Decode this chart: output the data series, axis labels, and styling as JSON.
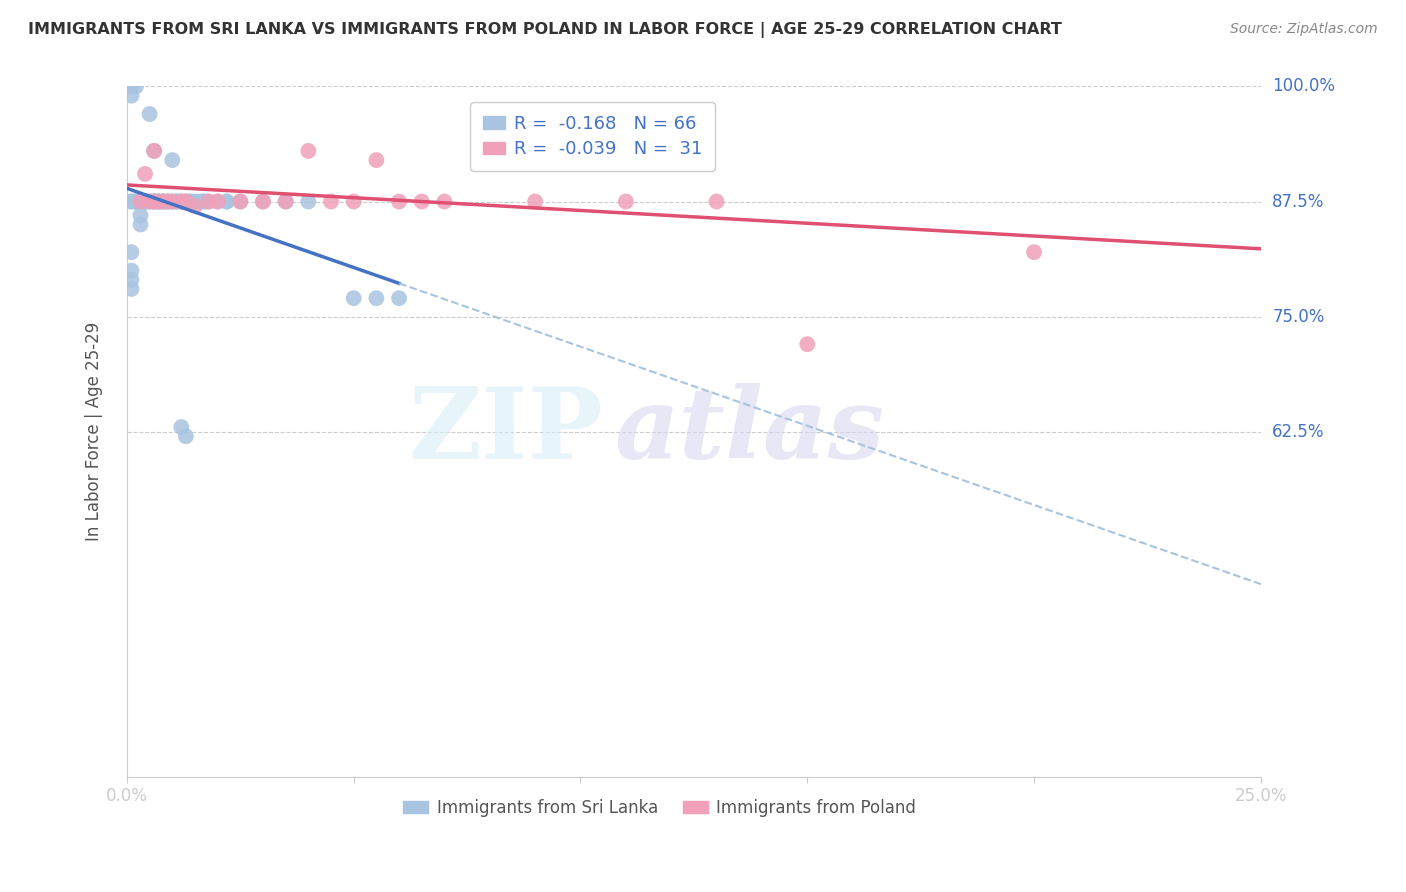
{
  "title": "IMMIGRANTS FROM SRI LANKA VS IMMIGRANTS FROM POLAND IN LABOR FORCE | AGE 25-29 CORRELATION CHART",
  "source_text": "Source: ZipAtlas.com",
  "ylabel_label": "In Labor Force | Age 25-29",
  "legend_label_blue": "Immigrants from Sri Lanka",
  "legend_label_pink": "Immigrants from Poland",
  "legend_R_blue_val": "-0.168",
  "legend_N_blue": "66",
  "legend_R_pink_val": "-0.039",
  "legend_N_pink": "31",
  "xlim": [
    0.0,
    0.25
  ],
  "ylim": [
    0.25,
    1.0
  ],
  "x_ticks": [
    0.0,
    0.05,
    0.1,
    0.15,
    0.2,
    0.25
  ],
  "x_tick_labels_show": [
    "0.0%",
    "",
    "",
    "",
    "",
    "25.0%"
  ],
  "y_ticks_right": [
    0.625,
    0.75,
    0.875,
    1.0
  ],
  "y_tick_labels_right": [
    "62.5%",
    "75.0%",
    "87.5%",
    "100.0%"
  ],
  "blue_scatter_color": "#a8c4e0",
  "pink_scatter_color": "#f0a0b8",
  "blue_line_color": "#4472c4",
  "pink_line_color": "#e05070",
  "blue_dashed_color": "#a8c4e0",
  "tick_label_color": "#4472c4",
  "title_color": "#333333",
  "source_color": "#888888",
  "ylabel_color": "#555555",
  "grid_color": "#cccccc",
  "background_color": "#ffffff",
  "sl_x": [
    0.001,
    0.001,
    0.001,
    0.001,
    0.001,
    0.001,
    0.002,
    0.002,
    0.002,
    0.002,
    0.002,
    0.003,
    0.003,
    0.003,
    0.003,
    0.004,
    0.004,
    0.004,
    0.005,
    0.005,
    0.005,
    0.006,
    0.006,
    0.006,
    0.006,
    0.007,
    0.007,
    0.007,
    0.008,
    0.008,
    0.008,
    0.009,
    0.009,
    0.01,
    0.01,
    0.01,
    0.011,
    0.011,
    0.012,
    0.012,
    0.012,
    0.013,
    0.013,
    0.014,
    0.014,
    0.015,
    0.016,
    0.017,
    0.018,
    0.02,
    0.022,
    0.025,
    0.03,
    0.035,
    0.04,
    0.05,
    0.055,
    0.06,
    0.012,
    0.013,
    0.017,
    0.022,
    0.001,
    0.001,
    0.001,
    0.001
  ],
  "sl_y": [
    1.0,
    1.0,
    1.0,
    0.99,
    0.875,
    0.875,
    1.0,
    0.875,
    0.875,
    0.875,
    0.875,
    0.875,
    0.875,
    0.86,
    0.85,
    0.875,
    0.875,
    0.875,
    0.97,
    0.875,
    0.875,
    0.93,
    0.875,
    0.875,
    0.875,
    0.875,
    0.875,
    0.875,
    0.875,
    0.875,
    0.875,
    0.875,
    0.875,
    0.92,
    0.875,
    0.875,
    0.875,
    0.875,
    0.875,
    0.875,
    0.875,
    0.875,
    0.875,
    0.875,
    0.875,
    0.875,
    0.875,
    0.875,
    0.875,
    0.875,
    0.875,
    0.875,
    0.875,
    0.875,
    0.875,
    0.77,
    0.77,
    0.77,
    0.63,
    0.62,
    0.875,
    0.875,
    0.82,
    0.8,
    0.79,
    0.78
  ],
  "pl_x": [
    0.003,
    0.004,
    0.005,
    0.006,
    0.006,
    0.007,
    0.008,
    0.009,
    0.01,
    0.012,
    0.013,
    0.015,
    0.018,
    0.02,
    0.025,
    0.03,
    0.035,
    0.04,
    0.045,
    0.05,
    0.055,
    0.06,
    0.065,
    0.07,
    0.08,
    0.09,
    0.1,
    0.11,
    0.13,
    0.15,
    0.2
  ],
  "pl_y": [
    0.875,
    0.905,
    0.875,
    0.93,
    0.875,
    0.875,
    0.875,
    0.875,
    0.875,
    0.875,
    0.875,
    0.87,
    0.875,
    0.875,
    0.875,
    0.875,
    0.875,
    0.93,
    0.875,
    0.875,
    0.92,
    0.875,
    0.875,
    0.875,
    0.965,
    0.875,
    0.965,
    0.875,
    0.875,
    0.72,
    0.82
  ]
}
